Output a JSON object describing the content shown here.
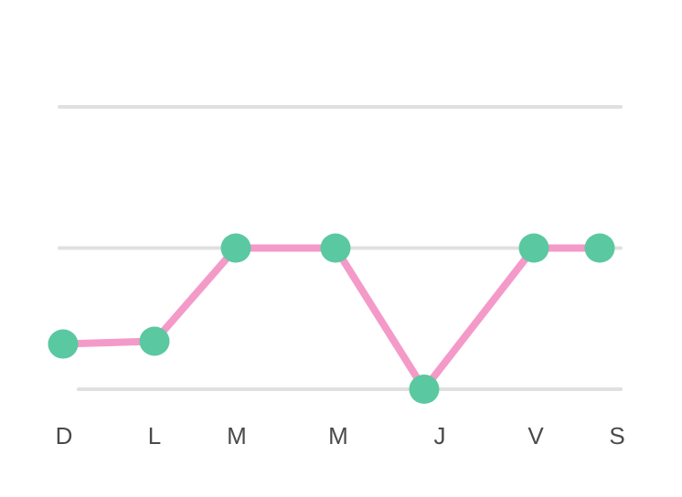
{
  "chart_data": {
    "type": "line",
    "categories": [
      "D",
      "L",
      "M",
      "M",
      "J",
      "V",
      "S"
    ],
    "values": [
      0.32,
      0.34,
      1,
      1,
      0,
      1,
      1
    ],
    "ylim": [
      0,
      2
    ],
    "grid": true,
    "title": "",
    "xlabel": "",
    "ylabel": "",
    "colors": {
      "line": "#f49ac8",
      "point": "#5ac8a0",
      "grid": "#e0e0e0",
      "tick": "#4a4a4a"
    }
  }
}
